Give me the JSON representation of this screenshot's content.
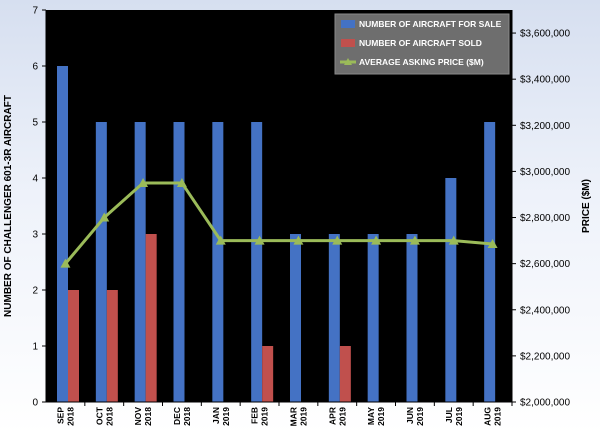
{
  "chart_data": {
    "type": "bar",
    "categories": [
      "SEP 2018",
      "OCT 2018",
      "NOV 2018",
      "DEC 2018",
      "JAN 2019",
      "FEB 2019",
      "MAR 2019",
      "APR 2019",
      "MAY 2019",
      "JUN 2019",
      "JUL 2019",
      "AUG 2019"
    ],
    "category_lines": [
      [
        "SEP",
        "2018"
      ],
      [
        "OCT",
        "2018"
      ],
      [
        "NOV",
        "2018"
      ],
      [
        "DEC",
        "2018"
      ],
      [
        "JAN",
        "2019"
      ],
      [
        "FEB",
        "2019"
      ],
      [
        "MAR",
        "2019"
      ],
      [
        "APR",
        "2019"
      ],
      [
        "MAY",
        "2019"
      ],
      [
        "JUN",
        "2019"
      ],
      [
        "JUL",
        "2019"
      ],
      [
        "AUG",
        "2019"
      ]
    ],
    "series": [
      {
        "name": "NUMBER OF AIRCRAFT FOR SALE",
        "kind": "bar",
        "axis": "left",
        "color": "#4472c4",
        "values": [
          6,
          5,
          5,
          5,
          5,
          5,
          3,
          3,
          3,
          3,
          4,
          5
        ]
      },
      {
        "name": "NUMBER OF AIRCRAFT SOLD",
        "kind": "bar",
        "axis": "left",
        "color": "#c0504d",
        "values": [
          2,
          2,
          3,
          0,
          0,
          1,
          0,
          1,
          0,
          0,
          0,
          0
        ]
      },
      {
        "name": "AVERAGE ASKING PRICE ($M)",
        "kind": "line",
        "axis": "right",
        "color": "#9bbb59",
        "values": [
          2600000,
          2800000,
          2950000,
          2950000,
          2700000,
          2700000,
          2700000,
          2700000,
          2700000,
          2700000,
          2700000,
          2685000
        ]
      }
    ],
    "ylabel": "NUMBER OF CHALLENGER 601-3R AIRCRAFT",
    "y2label": "PRICE ($M)",
    "ylim": [
      0,
      7
    ],
    "yticks": [
      "0",
      "1",
      "2",
      "3",
      "4",
      "5",
      "6",
      "7"
    ],
    "y2lim": [
      2000000,
      3700000
    ],
    "y2ticks": [
      "$2,000,000",
      "$2,200,000",
      "$2,400,000",
      "$2,600,000",
      "$2,800,000",
      "$3,000,000",
      "$3,200,000",
      "$3,400,000",
      "$3,600,000"
    ],
    "grid": false,
    "plot_background": "#000000",
    "legend_position": "top-right"
  }
}
